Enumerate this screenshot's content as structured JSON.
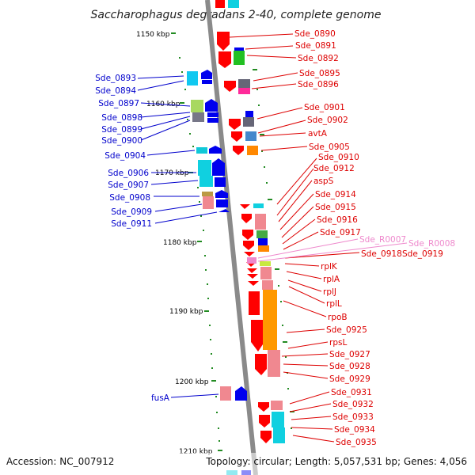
{
  "title": "Saccharophagus degradans 2-40, complete genome",
  "footer": {
    "accession": "Accession: NC_007912",
    "topology": "Topology: circular; Length: 5,057,531 bp; Genes: 4,056"
  },
  "ruler": [
    "1150 kbp",
    "1160 kbp",
    "1170 kbp",
    "1180 kbp",
    "1190 kbp",
    "1200 kbp",
    "1210 kbp"
  ],
  "labels_left": [
    "Sde_0893",
    "Sde_0894",
    "Sde_0897",
    "Sde_0898",
    "Sde_0899",
    "Sde_0900",
    "Sde_0904",
    "Sde_0906",
    "Sde_0907",
    "Sde_0908",
    "Sde_0909",
    "Sde_0911",
    "fusA"
  ],
  "labels_right": [
    "Sde_0890",
    "Sde_0891",
    "Sde_0892",
    "Sde_0895",
    "Sde_0896",
    "Sde_0901",
    "Sde_0902",
    "avtA",
    "Sde_0905",
    "Sde_0910",
    "Sde_0912",
    "aspS",
    "Sde_0914",
    "Sde_0915",
    "Sde_0916",
    "Sde_0917",
    "Sde_0918",
    "Sde_0919",
    "rplK",
    "rplA",
    "rplJ",
    "rplL",
    "rpoB",
    "Sde_0925",
    "rpsL",
    "Sde_0927",
    "Sde_0928",
    "Sde_0929",
    "Sde_0931",
    "Sde_0932",
    "Sde_0933",
    "Sde_0934",
    "Sde_0935"
  ],
  "labels_rna": [
    "Sde_R0007",
    "Sde_R0008"
  ],
  "colors": {
    "forward": "#0000dd",
    "reverse": "#dd0000",
    "rna": "#e07ab8",
    "backbone": "#8a8a8a",
    "tick": "#228b22"
  }
}
